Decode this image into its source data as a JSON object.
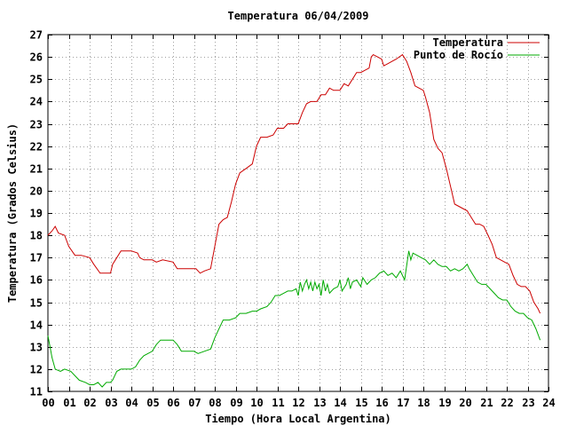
{
  "chart_data": {
    "type": "line",
    "title": "Temperatura 06/04/2009",
    "xlabel": "Tiempo (Hora Local Argentina)",
    "ylabel": "Temperatura (Grados Celsius)",
    "xlim": [
      0,
      24
    ],
    "ylim": [
      11,
      27
    ],
    "x_ticks": [
      0,
      1,
      2,
      3,
      4,
      5,
      6,
      7,
      8,
      9,
      10,
      11,
      12,
      13,
      14,
      15,
      16,
      17,
      18,
      19,
      20,
      21,
      22,
      23,
      24
    ],
    "x_tick_labels": [
      "00",
      "01",
      "02",
      "03",
      "04",
      "05",
      "06",
      "07",
      "08",
      "09",
      "10",
      "11",
      "12",
      "13",
      "14",
      "15",
      "16",
      "17",
      "18",
      "19",
      "20",
      "21",
      "22",
      "23",
      "24"
    ],
    "y_ticks": [
      11,
      12,
      13,
      14,
      15,
      16,
      17,
      18,
      19,
      20,
      21,
      22,
      23,
      24,
      25,
      26,
      27
    ],
    "grid": true,
    "legend_position": "top-right",
    "series": [
      {
        "name": "Temperatura",
        "color": "#cc0000",
        "points": [
          [
            0.0,
            18.0
          ],
          [
            0.2,
            18.2
          ],
          [
            0.35,
            18.4
          ],
          [
            0.5,
            18.1
          ],
          [
            0.8,
            18.0
          ],
          [
            1.0,
            17.5
          ],
          [
            1.3,
            17.1
          ],
          [
            1.6,
            17.1
          ],
          [
            2.0,
            17.0
          ],
          [
            2.2,
            16.7
          ],
          [
            2.5,
            16.3
          ],
          [
            2.8,
            16.3
          ],
          [
            3.0,
            16.3
          ],
          [
            3.1,
            16.7
          ],
          [
            3.3,
            17.0
          ],
          [
            3.5,
            17.3
          ],
          [
            4.0,
            17.3
          ],
          [
            4.3,
            17.2
          ],
          [
            4.4,
            17.0
          ],
          [
            4.6,
            16.9
          ],
          [
            5.0,
            16.9
          ],
          [
            5.2,
            16.8
          ],
          [
            5.5,
            16.9
          ],
          [
            6.0,
            16.8
          ],
          [
            6.2,
            16.5
          ],
          [
            6.5,
            16.5
          ],
          [
            6.8,
            16.5
          ],
          [
            7.1,
            16.5
          ],
          [
            7.3,
            16.3
          ],
          [
            7.5,
            16.4
          ],
          [
            7.8,
            16.5
          ],
          [
            8.0,
            17.5
          ],
          [
            8.2,
            18.5
          ],
          [
            8.4,
            18.7
          ],
          [
            8.6,
            18.8
          ],
          [
            8.8,
            19.5
          ],
          [
            9.0,
            20.3
          ],
          [
            9.2,
            20.8
          ],
          [
            9.5,
            21.0
          ],
          [
            9.8,
            21.2
          ],
          [
            10.0,
            22.0
          ],
          [
            10.2,
            22.4
          ],
          [
            10.5,
            22.4
          ],
          [
            10.8,
            22.5
          ],
          [
            11.0,
            22.8
          ],
          [
            11.3,
            22.8
          ],
          [
            11.5,
            23.0
          ],
          [
            11.8,
            23.0
          ],
          [
            12.0,
            23.0
          ],
          [
            12.2,
            23.5
          ],
          [
            12.4,
            23.9
          ],
          [
            12.6,
            24.0
          ],
          [
            12.9,
            24.0
          ],
          [
            13.1,
            24.3
          ],
          [
            13.3,
            24.3
          ],
          [
            13.5,
            24.6
          ],
          [
            13.7,
            24.5
          ],
          [
            14.0,
            24.5
          ],
          [
            14.2,
            24.8
          ],
          [
            14.4,
            24.7
          ],
          [
            14.6,
            25.0
          ],
          [
            14.8,
            25.3
          ],
          [
            15.0,
            25.3
          ],
          [
            15.2,
            25.4
          ],
          [
            15.4,
            25.5
          ],
          [
            15.5,
            26.0
          ],
          [
            15.6,
            26.1
          ],
          [
            15.8,
            26.0
          ],
          [
            16.0,
            25.9
          ],
          [
            16.1,
            25.6
          ],
          [
            16.3,
            25.7
          ],
          [
            16.5,
            25.8
          ],
          [
            16.7,
            25.9
          ],
          [
            17.0,
            26.1
          ],
          [
            17.2,
            25.8
          ],
          [
            17.4,
            25.3
          ],
          [
            17.6,
            24.7
          ],
          [
            17.8,
            24.6
          ],
          [
            18.0,
            24.5
          ],
          [
            18.1,
            24.2
          ],
          [
            18.3,
            23.5
          ],
          [
            18.5,
            22.3
          ],
          [
            18.7,
            21.9
          ],
          [
            18.9,
            21.7
          ],
          [
            19.1,
            21.0
          ],
          [
            19.3,
            20.2
          ],
          [
            19.5,
            19.4
          ],
          [
            19.7,
            19.3
          ],
          [
            19.9,
            19.2
          ],
          [
            20.1,
            19.1
          ],
          [
            20.3,
            18.8
          ],
          [
            20.5,
            18.5
          ],
          [
            20.7,
            18.5
          ],
          [
            20.9,
            18.4
          ],
          [
            21.1,
            18.0
          ],
          [
            21.3,
            17.6
          ],
          [
            21.5,
            17.0
          ],
          [
            21.7,
            16.9
          ],
          [
            21.9,
            16.8
          ],
          [
            22.1,
            16.7
          ],
          [
            22.3,
            16.2
          ],
          [
            22.5,
            15.8
          ],
          [
            22.7,
            15.7
          ],
          [
            22.9,
            15.7
          ],
          [
            23.1,
            15.5
          ],
          [
            23.3,
            15.0
          ],
          [
            23.5,
            14.7
          ],
          [
            23.6,
            14.5
          ]
        ]
      },
      {
        "name": "Punto de Rocío",
        "color": "#00aa00",
        "points": [
          [
            0.0,
            13.5
          ],
          [
            0.1,
            13.0
          ],
          [
            0.2,
            12.5
          ],
          [
            0.35,
            12.0
          ],
          [
            0.6,
            11.9
          ],
          [
            0.8,
            12.0
          ],
          [
            1.1,
            11.9
          ],
          [
            1.3,
            11.7
          ],
          [
            1.5,
            11.5
          ],
          [
            1.8,
            11.4
          ],
          [
            2.0,
            11.3
          ],
          [
            2.2,
            11.3
          ],
          [
            2.4,
            11.4
          ],
          [
            2.6,
            11.2
          ],
          [
            2.8,
            11.4
          ],
          [
            3.0,
            11.4
          ],
          [
            3.1,
            11.5
          ],
          [
            3.3,
            11.9
          ],
          [
            3.5,
            12.0
          ],
          [
            3.8,
            12.0
          ],
          [
            4.0,
            12.0
          ],
          [
            4.2,
            12.1
          ],
          [
            4.4,
            12.4
          ],
          [
            4.6,
            12.6
          ],
          [
            4.8,
            12.7
          ],
          [
            5.0,
            12.8
          ],
          [
            5.2,
            13.1
          ],
          [
            5.4,
            13.3
          ],
          [
            5.7,
            13.3
          ],
          [
            6.0,
            13.3
          ],
          [
            6.2,
            13.1
          ],
          [
            6.4,
            12.8
          ],
          [
            6.7,
            12.8
          ],
          [
            7.0,
            12.8
          ],
          [
            7.2,
            12.7
          ],
          [
            7.5,
            12.8
          ],
          [
            7.8,
            12.9
          ],
          [
            8.0,
            13.4
          ],
          [
            8.2,
            13.8
          ],
          [
            8.4,
            14.2
          ],
          [
            8.7,
            14.2
          ],
          [
            9.0,
            14.3
          ],
          [
            9.2,
            14.5
          ],
          [
            9.5,
            14.5
          ],
          [
            9.8,
            14.6
          ],
          [
            10.0,
            14.6
          ],
          [
            10.2,
            14.7
          ],
          [
            10.5,
            14.8
          ],
          [
            10.7,
            15.0
          ],
          [
            10.9,
            15.3
          ],
          [
            11.1,
            15.3
          ],
          [
            11.3,
            15.4
          ],
          [
            11.5,
            15.5
          ],
          [
            11.7,
            15.5
          ],
          [
            11.9,
            15.6
          ],
          [
            12.0,
            15.3
          ],
          [
            12.1,
            15.9
          ],
          [
            12.2,
            15.5
          ],
          [
            12.3,
            15.8
          ],
          [
            12.4,
            16.0
          ],
          [
            12.5,
            15.6
          ],
          [
            12.6,
            15.9
          ],
          [
            12.7,
            15.5
          ],
          [
            12.8,
            15.9
          ],
          [
            12.9,
            15.6
          ],
          [
            13.0,
            15.8
          ],
          [
            13.1,
            15.3
          ],
          [
            13.2,
            16.0
          ],
          [
            13.3,
            15.5
          ],
          [
            13.4,
            15.8
          ],
          [
            13.5,
            15.4
          ],
          [
            13.7,
            15.6
          ],
          [
            13.9,
            15.7
          ],
          [
            14.0,
            16.0
          ],
          [
            14.1,
            15.5
          ],
          [
            14.3,
            15.8
          ],
          [
            14.4,
            16.1
          ],
          [
            14.5,
            15.6
          ],
          [
            14.6,
            15.9
          ],
          [
            14.8,
            16.0
          ],
          [
            15.0,
            15.7
          ],
          [
            15.1,
            16.1
          ],
          [
            15.3,
            15.8
          ],
          [
            15.5,
            16.0
          ],
          [
            15.7,
            16.1
          ],
          [
            15.9,
            16.3
          ],
          [
            16.1,
            16.4
          ],
          [
            16.3,
            16.2
          ],
          [
            16.5,
            16.3
          ],
          [
            16.7,
            16.1
          ],
          [
            16.9,
            16.4
          ],
          [
            17.1,
            16.0
          ],
          [
            17.3,
            17.3
          ],
          [
            17.4,
            16.9
          ],
          [
            17.5,
            17.2
          ],
          [
            17.7,
            17.1
          ],
          [
            17.9,
            17.0
          ],
          [
            18.1,
            16.9
          ],
          [
            18.3,
            16.7
          ],
          [
            18.5,
            16.9
          ],
          [
            18.7,
            16.7
          ],
          [
            18.9,
            16.6
          ],
          [
            19.1,
            16.6
          ],
          [
            19.3,
            16.4
          ],
          [
            19.5,
            16.5
          ],
          [
            19.7,
            16.4
          ],
          [
            19.9,
            16.5
          ],
          [
            20.1,
            16.7
          ],
          [
            20.2,
            16.5
          ],
          [
            20.4,
            16.2
          ],
          [
            20.6,
            15.9
          ],
          [
            20.8,
            15.8
          ],
          [
            21.0,
            15.8
          ],
          [
            21.2,
            15.6
          ],
          [
            21.4,
            15.4
          ],
          [
            21.6,
            15.2
          ],
          [
            21.8,
            15.1
          ],
          [
            22.0,
            15.1
          ],
          [
            22.2,
            14.8
          ],
          [
            22.4,
            14.6
          ],
          [
            22.6,
            14.5
          ],
          [
            22.8,
            14.5
          ],
          [
            23.0,
            14.3
          ],
          [
            23.2,
            14.2
          ],
          [
            23.4,
            13.8
          ],
          [
            23.6,
            13.3
          ]
        ]
      }
    ]
  }
}
